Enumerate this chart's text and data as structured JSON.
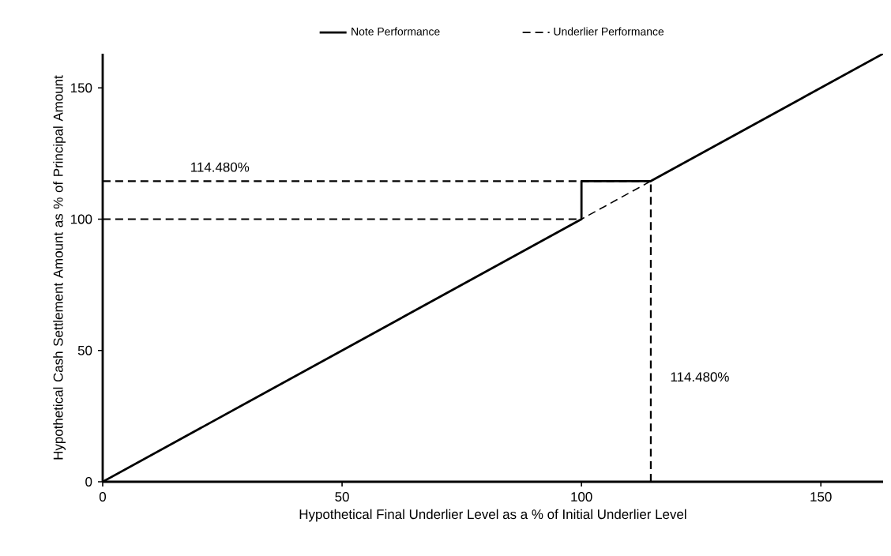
{
  "chart_data": {
    "type": "line",
    "xlabel": "Hypothetical Final Underlier Level as a % of Initial Underlier Level",
    "ylabel": "Hypothetical Cash Settlement Amount as % of Principal Amount",
    "xlim": [
      0,
      163
    ],
    "ylim": [
      0,
      163
    ],
    "xticks": [
      0,
      50,
      100,
      150
    ],
    "yticks": [
      0,
      50,
      100,
      150
    ],
    "legend": "top",
    "grid": false,
    "series": [
      {
        "name": "Underlier Performance",
        "color": "#000000",
        "line_style": "dashed",
        "x": [
          0,
          163
        ],
        "values": [
          0,
          163
        ]
      },
      {
        "color": "#000000",
        "line_style": "dashed",
        "x": [
          0,
          100
        ],
        "values": [
          100,
          100
        ]
      },
      {
        "color": "#000000",
        "line_style": "dashed",
        "x": [
          0,
          114.48
        ],
        "values": [
          114.48,
          114.48
        ]
      },
      {
        "color": "#000000",
        "line_style": "dashed",
        "x": [
          114.48,
          114.48
        ],
        "values": [
          0,
          114.48
        ]
      },
      {
        "name": "Note Performance",
        "color": "#000000",
        "line_style": "solid",
        "x": [
          0,
          100,
          100,
          114.48,
          163
        ],
        "values": [
          0,
          100,
          114.48,
          114.48,
          163
        ]
      }
    ],
    "annotations": [
      "114.480%",
      "114.480%"
    ]
  }
}
